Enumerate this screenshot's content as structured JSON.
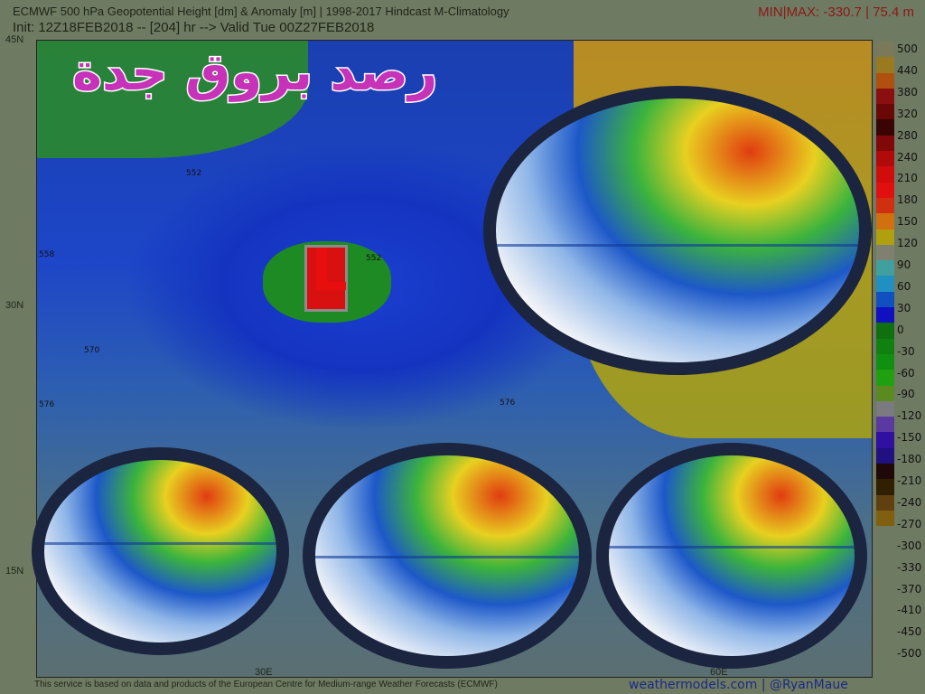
{
  "header": {
    "title": "ECMWF 500 hPa Geopotential Height [dm] & Anomaly [m] | 1998-2017 Hindcast M-Climatology",
    "init": "Init: 12Z18FEB2018 -- [204] hr --> Valid Tue 00Z27FEB2018",
    "minmax": "MIN|MAX: -330.7 | 75.4 m"
  },
  "overlay_title": "رصد بروق جدة",
  "low_symbol": "L",
  "lat_labels": [
    "45N",
    "30N",
    "15N"
  ],
  "lon_labels": [
    "30E",
    "60E"
  ],
  "contour_labels": [
    "552",
    "558",
    "552",
    "570",
    "576",
    "576"
  ],
  "colorbar": {
    "labels": [
      "500",
      "440",
      "380",
      "320",
      "280",
      "240",
      "210",
      "180",
      "150",
      "120",
      "90",
      "60",
      "30",
      "0",
      "-30",
      "-60",
      "-90",
      "-120",
      "-150",
      "-180",
      "-210",
      "-240",
      "-270",
      "-300",
      "-330",
      "-370",
      "-410",
      "-450",
      "-500"
    ],
    "colors": [
      "#7a7a5a",
      "#9a7a20",
      "#b05010",
      "#8a1010",
      "#6a0808",
      "#3a0404",
      "#800808",
      "#b00a0a",
      "#d00c0c",
      "#e01010",
      "#d03010",
      "#d07010",
      "#b0a010",
      "#808070",
      "#40a0a0",
      "#2090c0",
      "#1050c0",
      "#1010c0",
      "#107010",
      "#108010",
      "#109010",
      "#20a010",
      "#5a8a20",
      "#7a7a80",
      "#5a3aa0",
      "#3010a0",
      "#201080",
      "#200808",
      "#302000",
      "#604010",
      "#806010"
    ]
  },
  "footer": {
    "disclaimer": "This service is based on data and products of the European Centre for Medium-range Weather Forecasts (ECMWF)",
    "brand": "weathermodels.com | @RyanMaue"
  }
}
